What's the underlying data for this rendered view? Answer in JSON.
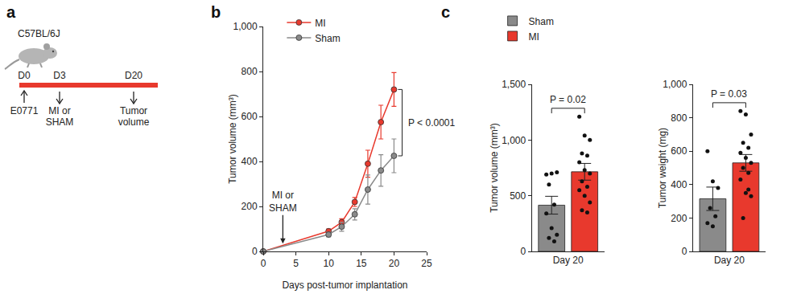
{
  "panel_labels": [
    "a",
    "b",
    "c"
  ],
  "schematic": {
    "strain": "C57BL/6J",
    "events": [
      {
        "day": "D0",
        "label": "E0771",
        "arrow": "up"
      },
      {
        "day": "D3",
        "label": "MI or\nSHAM",
        "arrow": "down"
      },
      {
        "day": "D20",
        "label": "Tumor\nvolume",
        "arrow": "down"
      }
    ]
  },
  "chart_data": [
    {
      "type": "line",
      "x": [
        0,
        10,
        12,
        14,
        16,
        18,
        20
      ],
      "series": [
        {
          "name": "MI",
          "color": "#e8392d",
          "marker": "circle",
          "values": [
            0,
            90,
            130,
            220,
            390,
            575,
            720
          ],
          "error": [
            0,
            10,
            15,
            20,
            60,
            75,
            75
          ]
        },
        {
          "name": "Sham",
          "color": "#8a8a8a",
          "marker": "circle",
          "values": [
            0,
            75,
            110,
            165,
            275,
            360,
            425
          ],
          "error": [
            0,
            10,
            20,
            25,
            65,
            70,
            75
          ]
        }
      ],
      "xlabel": "Days post-tumor implantation",
      "ylabel": "Tumor volume (mm³)",
      "xlim": [
        0,
        25
      ],
      "xticks": [
        0,
        5,
        10,
        15,
        20,
        25
      ],
      "ylim": [
        0,
        1000
      ],
      "yticks": [
        0,
        200,
        400,
        600,
        800,
        {
          "value": 1000,
          "label": "1,000"
        }
      ],
      "grid": false,
      "legend": "upper left",
      "annotations": [
        {
          "text": "MI or\nSHAM",
          "x": 3
        },
        {
          "text": "P < 0.0001"
        }
      ]
    },
    {
      "type": "bar",
      "categories": [
        "Day 20"
      ],
      "series": [
        {
          "name": "Sham",
          "color": "#8a8a8a",
          "values": [
            415
          ],
          "error": [
            80
          ],
          "points": [
            [
              690,
              700,
              710,
              600,
              420,
              340,
              210,
              150,
              120,
              90
            ]
          ]
        },
        {
          "name": "MI",
          "color": "#e8392d",
          "values": [
            715
          ],
          "error": [
            75
          ],
          "points": [
            [
              1210,
              1040,
              1000,
              880,
              860,
              800,
              730,
              700,
              630,
              580,
              550,
              500,
              440,
              370,
              350
            ]
          ]
        }
      ],
      "ylabel": "Tumor volume (mm³)",
      "ylim": [
        0,
        1500
      ],
      "yticks": [
        0,
        500,
        {
          "value": 1000,
          "label": "1,000"
        },
        {
          "value": 1500,
          "label": "1,500"
        }
      ],
      "grid": false,
      "legend": "upper left",
      "annotations": [
        {
          "text": "P = 0.02"
        }
      ]
    },
    {
      "type": "bar",
      "categories": [
        "Day 20"
      ],
      "series": [
        {
          "name": "Sham",
          "color": "#8a8a8a",
          "values": [
            315
          ],
          "error": [
            70
          ],
          "points": [
            [
              600,
              420,
              380,
              260,
              210,
              170,
              150
            ]
          ]
        },
        {
          "name": "MI",
          "color": "#e8392d",
          "values": [
            530
          ],
          "error": [
            50
          ],
          "points": [
            [
              840,
              820,
              700,
              650,
              620,
              590,
              560,
              530,
              500,
              470,
              430,
              350,
              330,
              200,
              370
            ]
          ]
        }
      ],
      "ylabel": "Tumor weight (mg)",
      "ylim": [
        0,
        1000
      ],
      "yticks": [
        0,
        200,
        400,
        600,
        800,
        {
          "value": 1000,
          "label": "1,000"
        }
      ],
      "grid": false,
      "annotations": [
        {
          "text": "P = 0.03"
        }
      ]
    }
  ]
}
